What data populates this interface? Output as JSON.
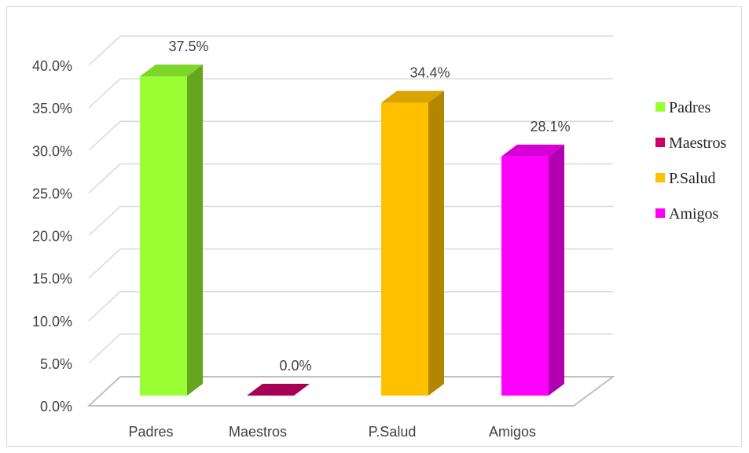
{
  "chart_data": {
    "type": "bar",
    "style": "3d-column",
    "categories": [
      "Padres",
      "Maestros",
      "P.Salud",
      "Amigos"
    ],
    "values": [
      37.5,
      0.0,
      34.4,
      28.1
    ],
    "data_labels": [
      "37.5%",
      "0.0%",
      "34.4%",
      "28.1%"
    ],
    "colors": [
      "#99ff33",
      "#cc0066",
      "#ffc000",
      "#ff00ff"
    ],
    "side_colors": [
      "#66a61f",
      "#8a0045",
      "#b38600",
      "#b000b0"
    ],
    "top_colors": [
      "#7fd62a",
      "#a80055",
      "#d9a300",
      "#d600d6"
    ],
    "ylim": [
      0,
      40
    ],
    "yticks": [
      0,
      5,
      10,
      15,
      20,
      25,
      30,
      35,
      40
    ],
    "ytick_labels": [
      "0.0%",
      "5.0%",
      "10.0%",
      "15.0%",
      "20.0%",
      "25.0%",
      "30.0%",
      "35.0%",
      "40.0%"
    ],
    "title": "",
    "xlabel": "",
    "ylabel": "",
    "grid": true,
    "legend": {
      "placement": "right",
      "entries": [
        "Padres",
        "Maestros",
        "P.Salud",
        "Amigos"
      ]
    }
  }
}
